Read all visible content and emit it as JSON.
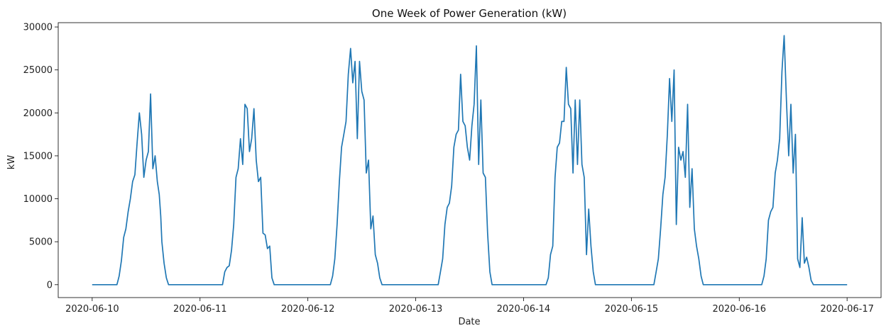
{
  "chart_data": {
    "type": "line",
    "title": "One Week of Power Generation (kW)",
    "xlabel": "Date",
    "ylabel": "kW",
    "xlim": [
      "2020-06-10",
      "2020-06-17"
    ],
    "ylim": [
      -1500,
      30500
    ],
    "x_ticks": [
      "2020-06-10",
      "2020-06-11",
      "2020-06-12",
      "2020-06-13",
      "2020-06-14",
      "2020-06-15",
      "2020-06-16",
      "2020-06-17"
    ],
    "y_ticks": [
      0,
      5000,
      10000,
      15000,
      20000,
      25000,
      30000
    ],
    "y_tick_labels": [
      "0",
      "5000",
      "10000",
      "15000",
      "20000",
      "25000",
      "30000"
    ],
    "grid": false,
    "legend": "none",
    "line_color": "#1f77b4",
    "series": [
      {
        "x": [
          "2020-06-10 00:00",
          "2020-06-10 05:30",
          "2020-06-10 06:00",
          "2020-06-10 06:30",
          "2020-06-10 07:00",
          "2020-06-10 07:30",
          "2020-06-10 08:00",
          "2020-06-10 08:30",
          "2020-06-10 09:00",
          "2020-06-10 09:30",
          "2020-06-10 10:00",
          "2020-06-10 10:30",
          "2020-06-10 11:00",
          "2020-06-10 11:30",
          "2020-06-10 12:00",
          "2020-06-10 12:30",
          "2020-06-10 13:00",
          "2020-06-10 13:30",
          "2020-06-10 14:00",
          "2020-06-10 14:30",
          "2020-06-10 14:55",
          "2020-06-10 15:15",
          "2020-06-10 15:30",
          "2020-06-10 16:00",
          "2020-06-10 16:30",
          "2020-06-10 17:00",
          "2020-06-10 17:30",
          "2020-06-10 18:00",
          "2020-06-10 18:30",
          "2020-06-10 19:00",
          "2020-06-11 03:00",
          "2020-06-11 05:00",
          "2020-06-11 05:30",
          "2020-06-11 06:00",
          "2020-06-11 06:30",
          "2020-06-11 07:00",
          "2020-06-11 07:30",
          "2020-06-11 08:00",
          "2020-06-11 08:30",
          "2020-06-11 09:00",
          "2020-06-11 09:30",
          "2020-06-11 10:00",
          "2020-06-11 10:30",
          "2020-06-11 11:00",
          "2020-06-11 11:30",
          "2020-06-11 12:00",
          "2020-06-11 12:30",
          "2020-06-11 13:00",
          "2020-06-11 13:30",
          "2020-06-11 14:00",
          "2020-06-11 14:30",
          "2020-06-11 15:00",
          "2020-06-11 15:30",
          "2020-06-11 16:00",
          "2020-06-11 16:30",
          "2020-06-11 17:00",
          "2020-06-11 17:30",
          "2020-06-11 18:00",
          "2020-06-11 18:30",
          "2020-06-11 19:00",
          "2020-06-12 03:00",
          "2020-06-12 05:00",
          "2020-06-12 05:30",
          "2020-06-12 06:00",
          "2020-06-12 06:30",
          "2020-06-12 07:00",
          "2020-06-12 07:30",
          "2020-06-12 08:00",
          "2020-06-12 08:30",
          "2020-06-12 09:00",
          "2020-06-12 09:30",
          "2020-06-12 10:00",
          "2020-06-12 10:30",
          "2020-06-12 11:00",
          "2020-06-12 11:30",
          "2020-06-12 12:00",
          "2020-06-12 12:30",
          "2020-06-12 13:00",
          "2020-06-12 13:30",
          "2020-06-12 14:00",
          "2020-06-12 14:30",
          "2020-06-12 15:00",
          "2020-06-12 15:30",
          "2020-06-12 16:00",
          "2020-06-12 16:30",
          "2020-06-12 17:00",
          "2020-06-12 17:30",
          "2020-06-12 18:00",
          "2020-06-12 18:30",
          "2020-06-12 19:00",
          "2020-06-13 03:00",
          "2020-06-13 05:00",
          "2020-06-13 05:30",
          "2020-06-13 06:00",
          "2020-06-13 06:30",
          "2020-06-13 07:00",
          "2020-06-13 07:30",
          "2020-06-13 08:00",
          "2020-06-13 08:30",
          "2020-06-13 09:00",
          "2020-06-13 09:30",
          "2020-06-13 10:00",
          "2020-06-13 10:30",
          "2020-06-13 11:00",
          "2020-06-13 11:30",
          "2020-06-13 12:00",
          "2020-06-13 12:30",
          "2020-06-13 13:00",
          "2020-06-13 13:30",
          "2020-06-13 14:00",
          "2020-06-13 14:30",
          "2020-06-13 15:00",
          "2020-06-13 15:30",
          "2020-06-13 16:00",
          "2020-06-13 16:30",
          "2020-06-13 17:00",
          "2020-06-13 17:30",
          "2020-06-13 18:00",
          "2020-06-13 18:30",
          "2020-06-13 19:00",
          "2020-06-14 03:00",
          "2020-06-14 05:00",
          "2020-06-14 05:30",
          "2020-06-14 06:00",
          "2020-06-14 06:30",
          "2020-06-14 07:00",
          "2020-06-14 07:30",
          "2020-06-14 08:00",
          "2020-06-14 08:30",
          "2020-06-14 09:00",
          "2020-06-14 09:30",
          "2020-06-14 10:00",
          "2020-06-14 10:30",
          "2020-06-14 11:00",
          "2020-06-14 11:30",
          "2020-06-14 12:00",
          "2020-06-14 12:30",
          "2020-06-14 13:00",
          "2020-06-14 13:30",
          "2020-06-14 14:00",
          "2020-06-14 14:30",
          "2020-06-14 15:00",
          "2020-06-14 15:30",
          "2020-06-14 16:00",
          "2020-06-14 16:30",
          "2020-06-14 17:00",
          "2020-06-14 17:30",
          "2020-06-14 18:00",
          "2020-06-14 18:30",
          "2020-06-14 19:00",
          "2020-06-15 03:00",
          "2020-06-15 05:00",
          "2020-06-15 05:30",
          "2020-06-15 06:00",
          "2020-06-15 06:30",
          "2020-06-15 07:00",
          "2020-06-15 07:30",
          "2020-06-15 08:00",
          "2020-06-15 08:30",
          "2020-06-15 09:00",
          "2020-06-15 09:30",
          "2020-06-15 10:00",
          "2020-06-15 10:30",
          "2020-06-15 11:00",
          "2020-06-15 11:30",
          "2020-06-15 12:00",
          "2020-06-15 12:30",
          "2020-06-15 13:00",
          "2020-06-15 13:30",
          "2020-06-15 14:00",
          "2020-06-15 14:30",
          "2020-06-15 15:00",
          "2020-06-15 15:30",
          "2020-06-15 16:00",
          "2020-06-15 16:30",
          "2020-06-15 17:00",
          "2020-06-15 17:30",
          "2020-06-15 18:00",
          "2020-06-15 18:30",
          "2020-06-15 19:00",
          "2020-06-16 03:00",
          "2020-06-16 05:00",
          "2020-06-16 05:30",
          "2020-06-16 06:00",
          "2020-06-16 06:30",
          "2020-06-16 07:00",
          "2020-06-16 07:30",
          "2020-06-16 08:00",
          "2020-06-16 08:30",
          "2020-06-16 09:00",
          "2020-06-16 09:30",
          "2020-06-16 10:00",
          "2020-06-16 10:30",
          "2020-06-16 11:00",
          "2020-06-16 11:30",
          "2020-06-16 12:00",
          "2020-06-16 12:30",
          "2020-06-16 13:00",
          "2020-06-16 13:30",
          "2020-06-16 14:00",
          "2020-06-16 14:30",
          "2020-06-16 15:00",
          "2020-06-16 15:30",
          "2020-06-16 16:00",
          "2020-06-16 16:30",
          "2020-06-16 17:00",
          "2020-06-16 17:30",
          "2020-06-16 18:00",
          "2020-06-16 18:30",
          "2020-06-16 19:00",
          "2020-06-17 00:00"
        ],
        "values": [
          0,
          0,
          1000,
          2800,
          5500,
          6500,
          8500,
          10000,
          12000,
          12800,
          16500,
          20000,
          17500,
          12500,
          14500,
          15500,
          22200,
          13500,
          15000,
          12000,
          10500,
          8000,
          5000,
          2500,
          800,
          0,
          0,
          0,
          0,
          0,
          0,
          0,
          1500,
          2000,
          2200,
          4000,
          7000,
          12500,
          13500,
          17000,
          14000,
          21000,
          20500,
          15500,
          17000,
          20500,
          14500,
          12000,
          12500,
          6000,
          5800,
          4200,
          4500,
          800,
          0,
          0,
          0,
          0,
          0,
          0,
          0,
          0,
          1000,
          3000,
          7000,
          12000,
          16000,
          17500,
          19000,
          24500,
          27500,
          23500,
          26000,
          17000,
          26000,
          22500,
          21500,
          13000,
          14500,
          6500,
          8000,
          3500,
          2500,
          800,
          0,
          0,
          0,
          0,
          0,
          0,
          0,
          0,
          1500,
          3000,
          7000,
          9000,
          9500,
          11500,
          16000,
          17500,
          18000,
          24500,
          19000,
          18500,
          16000,
          14500,
          18500,
          21000,
          27800,
          14000,
          21500,
          13000,
          12500,
          6000,
          1500,
          0,
          0,
          0,
          0,
          0,
          0,
          0,
          800,
          3500,
          4500,
          12500,
          16000,
          16500,
          19000,
          19000,
          25300,
          21000,
          20500,
          13000,
          21500,
          14000,
          21500,
          14000,
          12500,
          3500,
          8800,
          4500,
          1500,
          0,
          0,
          0,
          0,
          0,
          0,
          0,
          0,
          0,
          1500,
          3000,
          6500,
          10500,
          12500,
          17500,
          24000,
          19000,
          25000,
          7000,
          16000,
          14500,
          15500,
          12500,
          21000,
          9000,
          13500,
          6500,
          4500,
          3000,
          1000,
          0,
          0,
          0,
          0,
          0,
          0,
          0,
          0,
          0,
          1000,
          3000,
          7500,
          8500,
          9000,
          13000,
          14500,
          17000,
          24800,
          29000,
          21500,
          15000,
          21000,
          13000,
          17500,
          3000,
          2000,
          7800,
          2500,
          3200,
          2000,
          500,
          0,
          0,
          0,
          0,
          0,
          0,
          0
        ]
      }
    ]
  }
}
